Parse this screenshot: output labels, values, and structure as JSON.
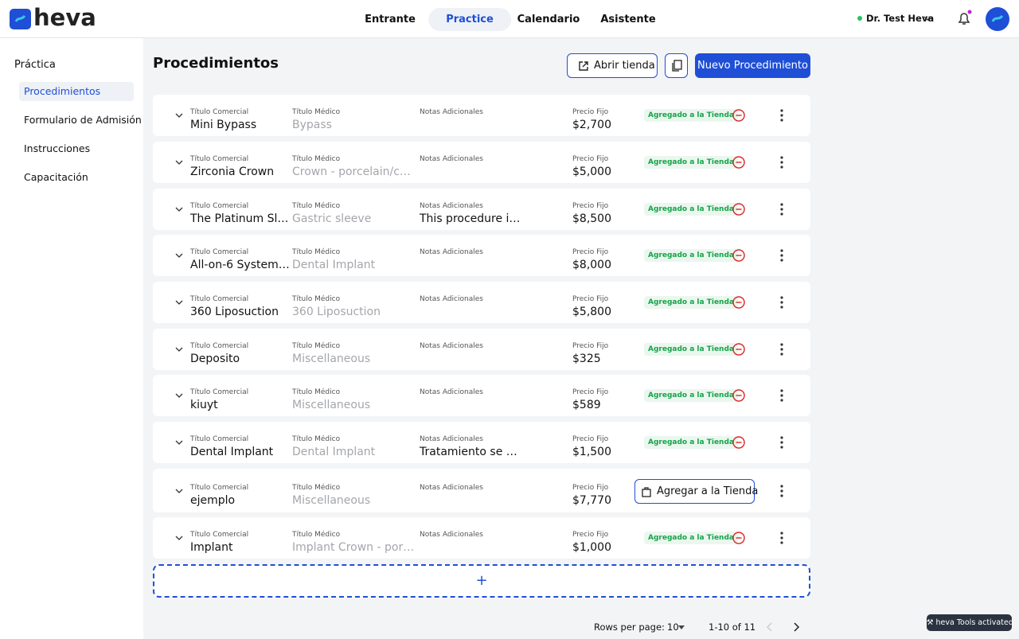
{
  "header": {
    "logo": "heva",
    "nav": [
      "Entrante",
      "Practice",
      "Calendario",
      "Asistente"
    ],
    "active_nav": 1,
    "user": "Dr. Test Heva"
  },
  "sidebar": {
    "title": "Práctica",
    "items": [
      "Procedimientos",
      "Formulario de Admisión",
      "Instrucciones",
      "Capacitación"
    ],
    "active": 0
  },
  "main": {
    "title": "Procedimientos",
    "open_store": "Abrir tienda",
    "new_button": "Nuevo Procedimiento",
    "add_row": "+"
  },
  "table": {
    "labels": [
      "Título Comercial",
      "Título Médico",
      "Notas Adicionales",
      "Precio Fijo"
    ],
    "added_label": "Agregado a la Tienda",
    "add_label": "Agregar a la Tienda",
    "rows": [
      {
        "commercial": "Mini Bypass",
        "medical": "Bypass",
        "notes": "",
        "price": "$2,700",
        "added": true
      },
      {
        "commercial": "Zirconia Crown",
        "medical": "Crown - porcelain/c…",
        "notes": "",
        "price": "$5,000",
        "added": true
      },
      {
        "commercial": "The Platinum Sl…",
        "medical": "Gastric sleeve",
        "notes": "This procedure i…",
        "price": "$8,500",
        "added": true
      },
      {
        "commercial": "All-on-6 System…",
        "medical": "Dental Implant",
        "notes": "",
        "price": "$8,000",
        "added": true
      },
      {
        "commercial": "360 Liposuction",
        "medical": "360 Liposuction",
        "notes": "",
        "price": "$5,800",
        "added": true
      },
      {
        "commercial": "Deposito",
        "medical": "Miscellaneous",
        "notes": "",
        "price": "$325",
        "added": true
      },
      {
        "commercial": "kiuyt",
        "medical": "Miscellaneous",
        "notes": "",
        "price": "$589",
        "added": true
      },
      {
        "commercial": "Dental Implant",
        "medical": "Dental Implant",
        "notes": "Tratamiento se …",
        "price": "$1,500",
        "added": true
      },
      {
        "commercial": "ejemplo",
        "medical": "Miscellaneous",
        "notes": "",
        "price": "$7,770",
        "added": false
      },
      {
        "commercial": "Implant",
        "medical": "Implant Crown - por…",
        "notes": "",
        "price": "$1,000",
        "added": true
      }
    ]
  },
  "pagination": {
    "rows_label": "Rows per page:",
    "rows_value": "10",
    "range": "1-10 of 11"
  },
  "toast": "⚒ heva Tools activated"
}
